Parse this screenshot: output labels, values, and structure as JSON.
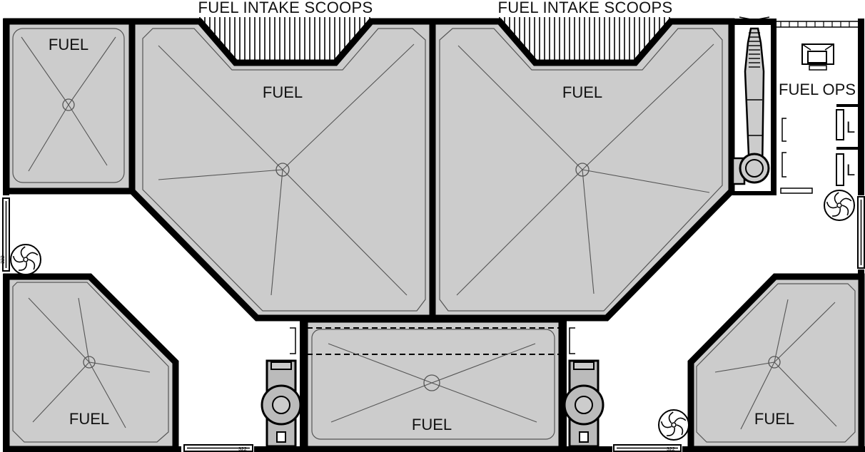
{
  "labels": {
    "intake_left": "FUEL INTAKE SCOOPS",
    "intake_right": "FUEL INTAKE SCOOPS",
    "fuel_ops": "FUEL OPS",
    "tank_top_left": "FUEL",
    "tank_main_left": "FUEL",
    "tank_main_right": "FUEL",
    "tank_bottom_left": "FUEL",
    "tank_bottom_center": "FUEL",
    "tank_bottom_right": "FUEL",
    "locker_1": "L",
    "locker_2": "L",
    "door_code": "322"
  },
  "colors": {
    "tank_fill": "#cccccc",
    "wall": "#000000",
    "background": "#ffffff"
  }
}
